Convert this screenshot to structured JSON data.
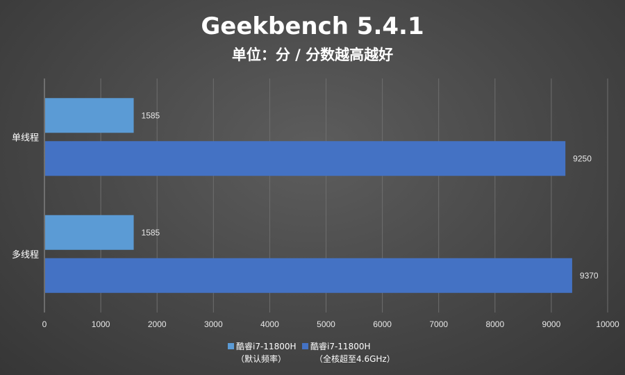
{
  "chart_data": {
    "type": "bar",
    "orientation": "horizontal",
    "title": "Geekbench 5.4.1",
    "subtitle": "单位：分 / 分数越高越好",
    "categories": [
      "单线程",
      "多线程"
    ],
    "series": [
      {
        "name": "酷睿i7-11800H",
        "name_line2": "（默认频率）",
        "values": [
          1585,
          1585
        ],
        "color": "#5b9bd5"
      },
      {
        "name": "酷睿i7-11800H",
        "name_line2": "（全核超至4.6GHz）",
        "values": [
          9250,
          9370
        ],
        "color": "#4472c4"
      }
    ],
    "xlim": [
      0,
      10000
    ],
    "xticks": [
      0,
      1000,
      2000,
      3000,
      4000,
      5000,
      6000,
      7000,
      8000,
      9000,
      10000
    ],
    "grid": true,
    "legend_position": "bottom"
  }
}
